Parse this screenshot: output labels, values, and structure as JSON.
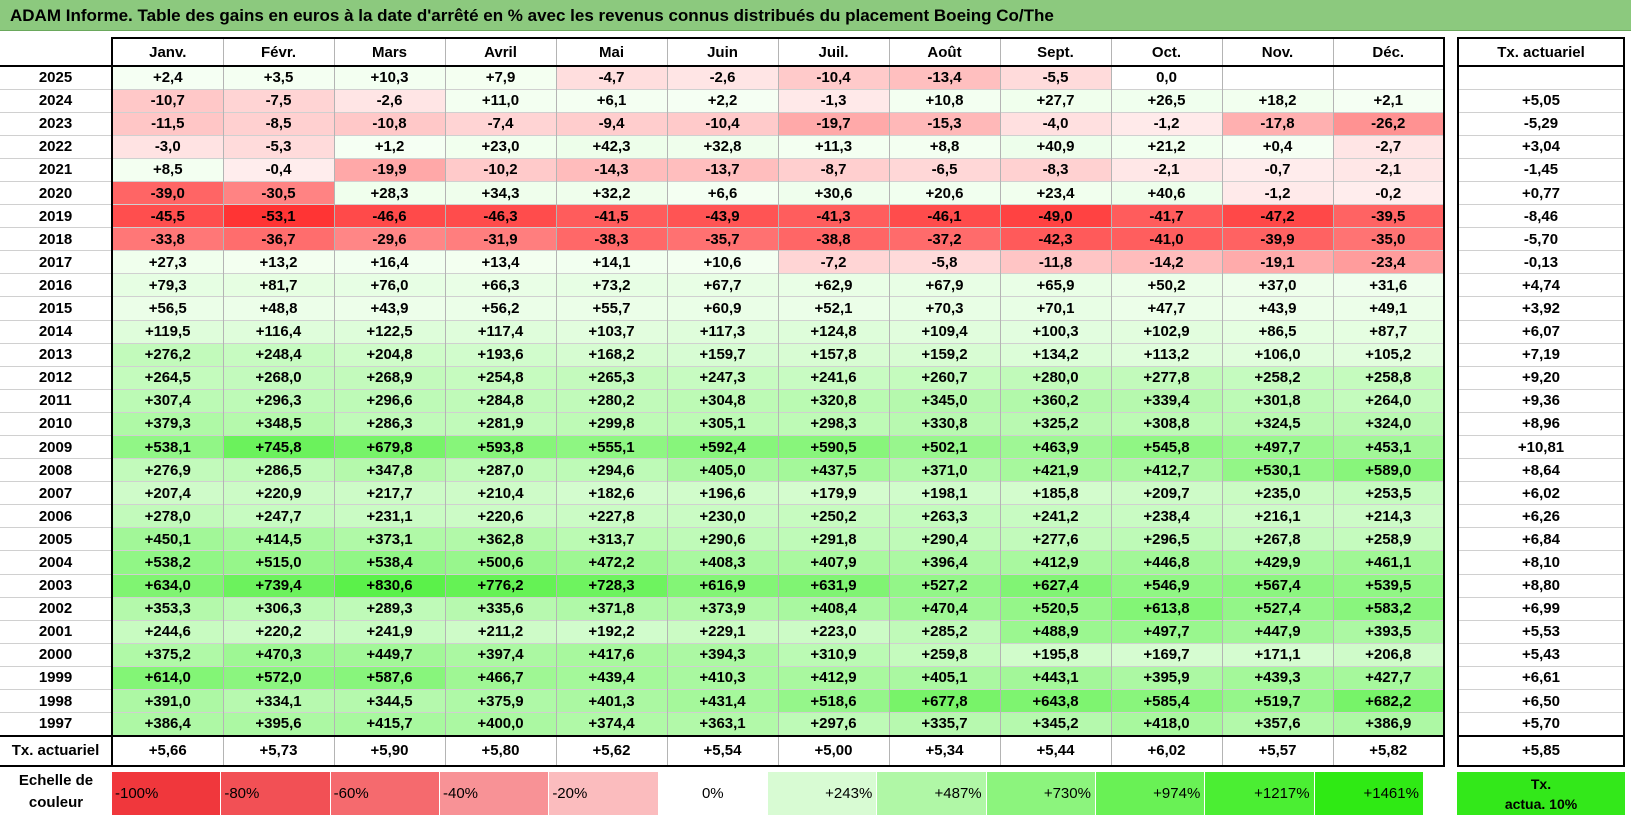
{
  "title": "ADAM Informe. Table des gains en euros à la date d'arrêté en % avec les revenus connus distribués du placement Boeing Co/The",
  "months": [
    "Janv.",
    "Févr.",
    "Mars",
    "Avril",
    "Mai",
    "Juin",
    "Juil.",
    "Août",
    "Sept.",
    "Oct.",
    "Nov.",
    "Déc."
  ],
  "rate_header": "Tx. actuariel",
  "rows": [
    {
      "year": "2025",
      "values": [
        "+2,4",
        "+3,5",
        "+10,3",
        "+7,9",
        "-4,7",
        "-2,6",
        "-10,4",
        "-13,4",
        "-5,5",
        "0,0",
        "",
        ""
      ],
      "rate": ""
    },
    {
      "year": "2024",
      "values": [
        "-10,7",
        "-7,5",
        "-2,6",
        "+11,0",
        "+6,1",
        "+2,2",
        "-1,3",
        "+10,8",
        "+27,7",
        "+26,5",
        "+18,2",
        "+2,1"
      ],
      "rate": "+5,05"
    },
    {
      "year": "2023",
      "values": [
        "-11,5",
        "-8,5",
        "-10,8",
        "-7,4",
        "-9,4",
        "-10,4",
        "-19,7",
        "-15,3",
        "-4,0",
        "-1,2",
        "-17,8",
        "-26,2"
      ],
      "rate": "-5,29"
    },
    {
      "year": "2022",
      "values": [
        "-3,0",
        "-5,3",
        "+1,2",
        "+23,0",
        "+42,3",
        "+32,8",
        "+11,3",
        "+8,8",
        "+40,9",
        "+21,2",
        "+0,4",
        "-2,7"
      ],
      "rate": "+3,04"
    },
    {
      "year": "2021",
      "values": [
        "+8,5",
        "-0,4",
        "-19,9",
        "-10,2",
        "-14,3",
        "-13,7",
        "-8,7",
        "-6,5",
        "-8,3",
        "-2,1",
        "-0,7",
        "-2,1"
      ],
      "rate": "-1,45"
    },
    {
      "year": "2020",
      "values": [
        "-39,0",
        "-30,5",
        "+28,3",
        "+34,3",
        "+32,2",
        "+6,6",
        "+30,6",
        "+20,6",
        "+23,4",
        "+40,6",
        "-1,2",
        "-0,2"
      ],
      "rate": "+0,77"
    },
    {
      "year": "2019",
      "values": [
        "-45,5",
        "-53,1",
        "-46,6",
        "-46,3",
        "-41,5",
        "-43,9",
        "-41,3",
        "-46,1",
        "-49,0",
        "-41,7",
        "-47,2",
        "-39,5"
      ],
      "rate": "-8,46"
    },
    {
      "year": "2018",
      "values": [
        "-33,8",
        "-36,7",
        "-29,6",
        "-31,9",
        "-38,3",
        "-35,7",
        "-38,8",
        "-37,2",
        "-42,3",
        "-41,0",
        "-39,9",
        "-35,0"
      ],
      "rate": "-5,70"
    },
    {
      "year": "2017",
      "values": [
        "+27,3",
        "+13,2",
        "+16,4",
        "+13,4",
        "+14,1",
        "+10,6",
        "-7,2",
        "-5,8",
        "-11,8",
        "-14,2",
        "-19,1",
        "-23,4"
      ],
      "rate": "-0,13"
    },
    {
      "year": "2016",
      "values": [
        "+79,3",
        "+81,7",
        "+76,0",
        "+66,3",
        "+73,2",
        "+67,7",
        "+62,9",
        "+67,9",
        "+65,9",
        "+50,2",
        "+37,0",
        "+31,6"
      ],
      "rate": "+4,74"
    },
    {
      "year": "2015",
      "values": [
        "+56,5",
        "+48,8",
        "+43,9",
        "+56,2",
        "+55,7",
        "+60,9",
        "+52,1",
        "+70,3",
        "+70,1",
        "+47,7",
        "+43,9",
        "+49,1"
      ],
      "rate": "+3,92"
    },
    {
      "year": "2014",
      "values": [
        "+119,5",
        "+116,4",
        "+122,5",
        "+117,4",
        "+103,7",
        "+117,3",
        "+124,8",
        "+109,4",
        "+100,3",
        "+102,9",
        "+86,5",
        "+87,7"
      ],
      "rate": "+6,07"
    },
    {
      "year": "2013",
      "values": [
        "+276,2",
        "+248,4",
        "+204,8",
        "+193,6",
        "+168,2",
        "+159,7",
        "+157,8",
        "+159,2",
        "+134,2",
        "+113,2",
        "+106,0",
        "+105,2"
      ],
      "rate": "+7,19"
    },
    {
      "year": "2012",
      "values": [
        "+264,5",
        "+268,0",
        "+268,9",
        "+254,8",
        "+265,3",
        "+247,3",
        "+241,6",
        "+260,7",
        "+280,0",
        "+277,8",
        "+258,2",
        "+258,8"
      ],
      "rate": "+9,20"
    },
    {
      "year": "2011",
      "values": [
        "+307,4",
        "+296,3",
        "+296,6",
        "+284,8",
        "+280,2",
        "+304,8",
        "+320,8",
        "+345,0",
        "+360,2",
        "+339,4",
        "+301,8",
        "+264,0"
      ],
      "rate": "+9,36"
    },
    {
      "year": "2010",
      "values": [
        "+379,3",
        "+348,5",
        "+286,3",
        "+281,9",
        "+299,8",
        "+305,1",
        "+298,3",
        "+330,8",
        "+325,2",
        "+308,8",
        "+324,5",
        "+324,0"
      ],
      "rate": "+8,96"
    },
    {
      "year": "2009",
      "values": [
        "+538,1",
        "+745,8",
        "+679,8",
        "+593,8",
        "+555,1",
        "+592,4",
        "+590,5",
        "+502,1",
        "+463,9",
        "+545,8",
        "+497,7",
        "+453,1"
      ],
      "rate": "+10,81"
    },
    {
      "year": "2008",
      "values": [
        "+276,9",
        "+286,5",
        "+347,8",
        "+287,0",
        "+294,6",
        "+405,0",
        "+437,5",
        "+371,0",
        "+421,9",
        "+412,7",
        "+530,1",
        "+589,0"
      ],
      "rate": "+8,64"
    },
    {
      "year": "2007",
      "values": [
        "+207,4",
        "+220,9",
        "+217,7",
        "+210,4",
        "+182,6",
        "+196,6",
        "+179,9",
        "+198,1",
        "+185,8",
        "+209,7",
        "+235,0",
        "+253,5"
      ],
      "rate": "+6,02"
    },
    {
      "year": "2006",
      "values": [
        "+278,0",
        "+247,7",
        "+231,1",
        "+220,6",
        "+227,8",
        "+230,0",
        "+250,2",
        "+263,3",
        "+241,2",
        "+238,4",
        "+216,1",
        "+214,3"
      ],
      "rate": "+6,26"
    },
    {
      "year": "2005",
      "values": [
        "+450,1",
        "+414,5",
        "+373,1",
        "+362,8",
        "+313,7",
        "+290,6",
        "+291,8",
        "+290,4",
        "+277,6",
        "+296,5",
        "+267,8",
        "+258,9"
      ],
      "rate": "+6,84"
    },
    {
      "year": "2004",
      "values": [
        "+538,2",
        "+515,0",
        "+538,4",
        "+500,6",
        "+472,2",
        "+408,3",
        "+407,9",
        "+396,4",
        "+412,9",
        "+446,8",
        "+429,9",
        "+461,1"
      ],
      "rate": "+8,10"
    },
    {
      "year": "2003",
      "values": [
        "+634,0",
        "+739,4",
        "+830,6",
        "+776,2",
        "+728,3",
        "+616,9",
        "+631,9",
        "+527,2",
        "+627,4",
        "+546,9",
        "+567,4",
        "+539,5"
      ],
      "rate": "+8,80"
    },
    {
      "year": "2002",
      "values": [
        "+353,3",
        "+306,3",
        "+289,3",
        "+335,6",
        "+371,8",
        "+373,9",
        "+408,4",
        "+470,4",
        "+520,5",
        "+613,8",
        "+527,4",
        "+583,2"
      ],
      "rate": "+6,99"
    },
    {
      "year": "2001",
      "values": [
        "+244,6",
        "+220,2",
        "+241,9",
        "+211,2",
        "+192,2",
        "+229,1",
        "+223,0",
        "+285,2",
        "+488,9",
        "+497,7",
        "+447,9",
        "+393,5"
      ],
      "rate": "+5,53"
    },
    {
      "year": "2000",
      "values": [
        "+375,2",
        "+470,3",
        "+449,7",
        "+397,4",
        "+417,6",
        "+394,3",
        "+310,9",
        "+259,8",
        "+195,8",
        "+169,7",
        "+171,1",
        "+206,8"
      ],
      "rate": "+5,43"
    },
    {
      "year": "1999",
      "values": [
        "+614,0",
        "+572,0",
        "+587,6",
        "+466,7",
        "+439,4",
        "+410,3",
        "+412,9",
        "+405,1",
        "+443,1",
        "+395,9",
        "+439,3",
        "+427,7"
      ],
      "rate": "+6,61"
    },
    {
      "year": "1998",
      "values": [
        "+391,0",
        "+334,1",
        "+344,5",
        "+375,9",
        "+401,3",
        "+431,4",
        "+518,6",
        "+677,8",
        "+643,8",
        "+585,4",
        "+519,7",
        "+682,2"
      ],
      "rate": "+6,50"
    },
    {
      "year": "1997",
      "values": [
        "+386,4",
        "+395,6",
        "+415,7",
        "+400,0",
        "+374,4",
        "+363,1",
        "+297,6",
        "+335,7",
        "+345,2",
        "+418,0",
        "+357,6",
        "+386,9"
      ],
      "rate": "+5,70"
    }
  ],
  "annual": {
    "label": "Tx. actuariel",
    "values": [
      "+5,66",
      "+5,73",
      "+5,90",
      "+5,80",
      "+5,62",
      "+5,54",
      "+5,00",
      "+5,34",
      "+5,44",
      "+6,02",
      "+5,57",
      "+5,82"
    ],
    "overall": "+5,85"
  },
  "scale": {
    "label_line1": "Echelle de",
    "label_line2": "couleur",
    "items": [
      {
        "label": "-100%",
        "color": "#f0373c",
        "kind": "neg"
      },
      {
        "label": "-80%",
        "color": "#f25055",
        "kind": "neg"
      },
      {
        "label": "-60%",
        "color": "#f56a6e",
        "kind": "neg"
      },
      {
        "label": "-40%",
        "color": "#f89296",
        "kind": "neg"
      },
      {
        "label": "-20%",
        "color": "#fbbcbe",
        "kind": "neg"
      },
      {
        "label": "0%",
        "color": "#ffffff",
        "kind": "zero"
      },
      {
        "label": "+243%",
        "color": "#d8fbd3",
        "kind": "pos"
      },
      {
        "label": "+487%",
        "color": "#b0f7a6",
        "kind": "pos"
      },
      {
        "label": "+730%",
        "color": "#8cf47d",
        "kind": "pos"
      },
      {
        "label": "+974%",
        "color": "#69f155",
        "kind": "pos"
      },
      {
        "label": "+1217%",
        "color": "#4bee33",
        "kind": "pos"
      },
      {
        "label": "+1461%",
        "color": "#2fea14",
        "kind": "pos"
      }
    ],
    "actua_line1": "Tx.",
    "actua_line2": "actua. 10%",
    "actua_color": "#33e81a"
  }
}
